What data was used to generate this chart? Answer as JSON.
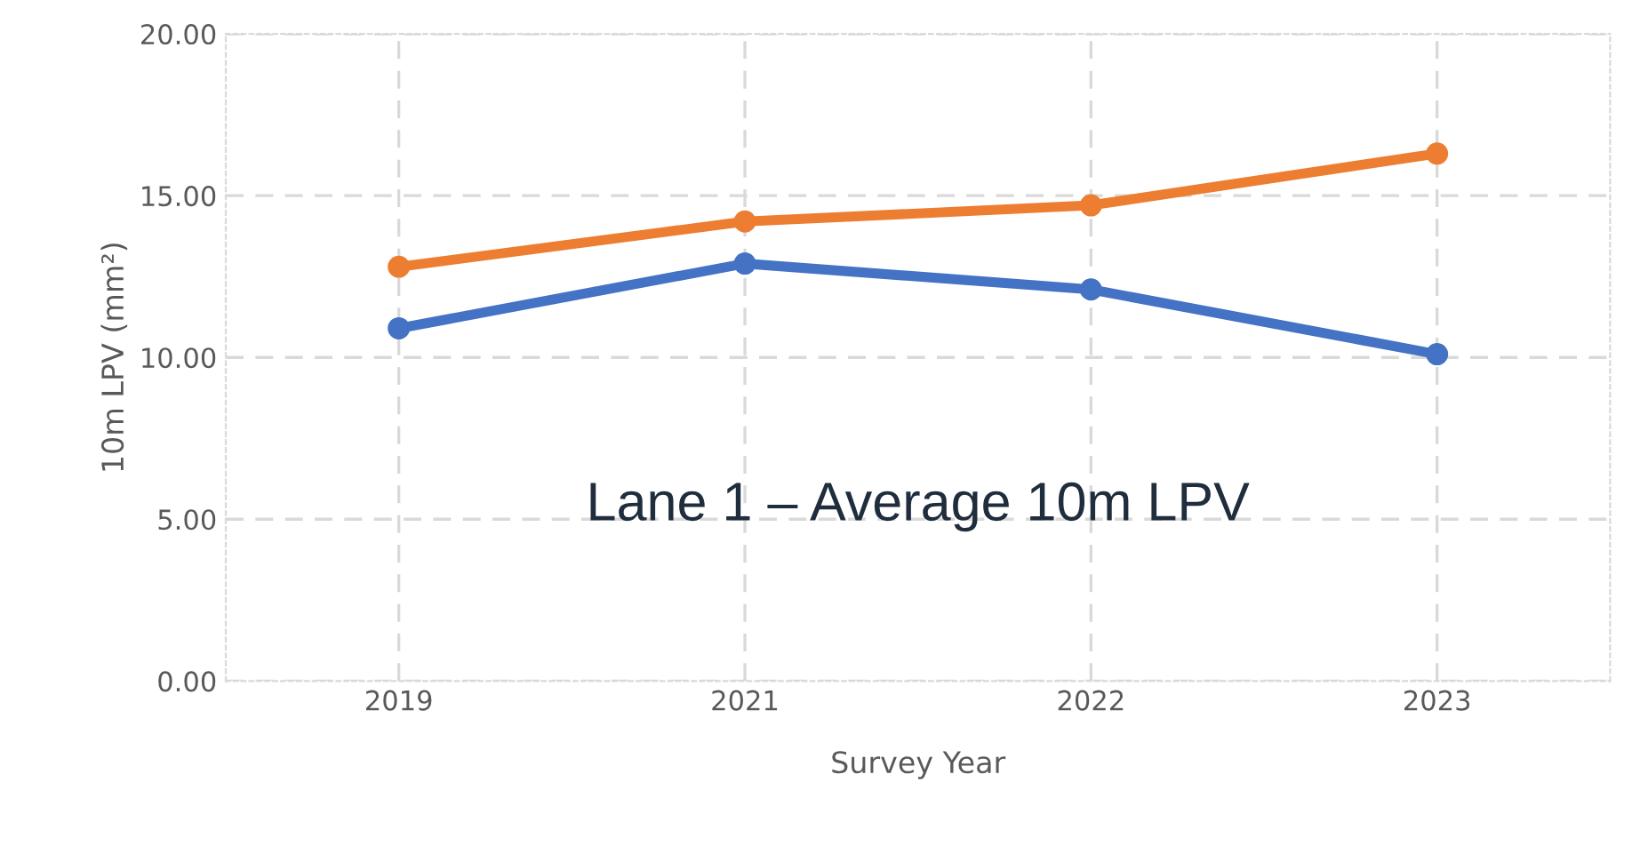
{
  "chart_data": {
    "type": "line",
    "title": "Lane 1 – Average 10m LPV",
    "xlabel": "Survey Year",
    "ylabel": "10m LPV (mm²)",
    "categories": [
      "2019",
      "2021",
      "2022",
      "2023"
    ],
    "series": [
      {
        "color": "#ed7d31",
        "values": [
          12.8,
          14.2,
          14.7,
          16.3
        ]
      },
      {
        "color": "#4472c4",
        "values": [
          10.9,
          12.9,
          12.1,
          10.1
        ]
      }
    ],
    "ylim": [
      0,
      20
    ],
    "yticks": [
      {
        "value": 0,
        "label": "0.00"
      },
      {
        "value": 5,
        "label": "5.00"
      },
      {
        "value": 10,
        "label": "10.00"
      },
      {
        "value": 15,
        "label": "15.00"
      },
      {
        "value": 20,
        "label": "20.00"
      }
    ],
    "grid": true,
    "marker": "circle",
    "line_style": "solid",
    "legend": false
  }
}
